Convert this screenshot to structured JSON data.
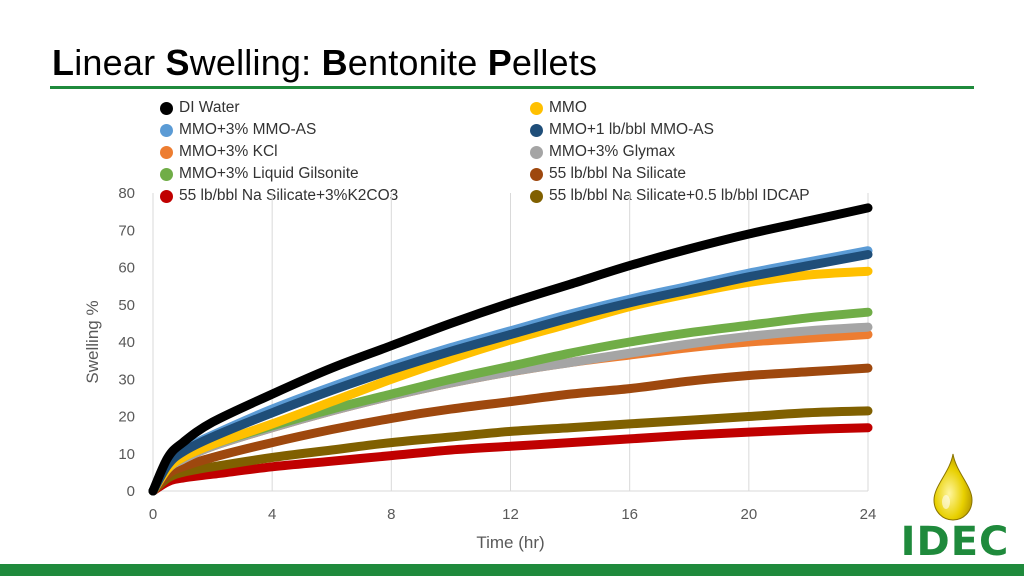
{
  "title": {
    "parts": [
      {
        "text": "L",
        "bold": true
      },
      {
        "text": "inear ",
        "bold": false
      },
      {
        "text": "S",
        "bold": true
      },
      {
        "text": "welling: ",
        "bold": false
      },
      {
        "text": "B",
        "bold": true
      },
      {
        "text": "entonite ",
        "bold": false
      },
      {
        "text": "P",
        "bold": true
      },
      {
        "text": "ellets",
        "bold": false
      }
    ]
  },
  "colors": {
    "accent_green": "#1f8a3c"
  },
  "logo": {
    "text": "IDEC",
    "icon": "oil-drop-icon"
  },
  "chart_data": {
    "type": "line",
    "title": "",
    "xlabel": "Time (hr)",
    "ylabel": "Swelling %",
    "xlim": [
      0,
      24
    ],
    "ylim": [
      0,
      80
    ],
    "xticks": [
      0,
      4,
      8,
      12,
      16,
      20,
      24
    ],
    "yticks": [
      0,
      10,
      20,
      30,
      40,
      50,
      60,
      70,
      80
    ],
    "grid": {
      "vertical": true,
      "horizontal": false
    },
    "legend_position": "top",
    "x": [
      0,
      0.5,
      1,
      2,
      4,
      6,
      8,
      10,
      12,
      14,
      16,
      18,
      20,
      22,
      24
    ],
    "series": [
      {
        "name": "DI Water",
        "color": "#000000",
        "values": [
          0,
          9,
          13,
          18.5,
          26,
          33,
          39,
          45,
          50.5,
          55.5,
          60.5,
          65,
          69,
          72.5,
          76
        ]
      },
      {
        "name": "MMO",
        "color": "#ffc000",
        "values": [
          0,
          6,
          9,
          12.5,
          18,
          24,
          30,
          35.5,
          40.5,
          45,
          49.5,
          53,
          56,
          58,
          59
        ]
      },
      {
        "name": "MMO+3% MMO-AS",
        "color": "#5b9bd5",
        "values": [
          0,
          7.5,
          11,
          15,
          22,
          28,
          33.5,
          38.5,
          43,
          47.5,
          51.5,
          55,
          58.5,
          61.5,
          64.5
        ]
      },
      {
        "name": "MMO+1 lb/bbl MMO-AS",
        "color": "#1f4e79",
        "values": [
          0,
          7,
          10.5,
          14.5,
          21,
          27,
          32.5,
          37.5,
          42,
          46.5,
          50.5,
          54,
          57.5,
          60.5,
          63.5
        ]
      },
      {
        "name": "MMO+3% KCl",
        "color": "#ed7d31",
        "values": [
          0,
          6,
          8.5,
          12,
          17,
          21.5,
          25.5,
          29,
          32,
          34.5,
          36.5,
          38.5,
          40,
          41,
          42
        ]
      },
      {
        "name": "MMO+3% Glymax",
        "color": "#a5a5a5",
        "values": [
          0,
          6,
          8.5,
          12,
          17,
          21.5,
          25.5,
          29,
          32,
          34.5,
          37,
          39.5,
          41.5,
          43,
          44
        ]
      },
      {
        "name": "MMO+3% Liquid Gilsonite",
        "color": "#70ad47",
        "values": [
          0,
          6,
          9,
          12.5,
          17.5,
          22,
          26,
          30,
          33.5,
          37,
          40,
          42.5,
          44.5,
          46.5,
          48
        ]
      },
      {
        "name": "55 lb/bbl Na Silicate",
        "color": "#9e480e",
        "values": [
          0,
          4.5,
          6.5,
          9,
          13,
          16.5,
          19.5,
          22,
          24,
          26,
          27.5,
          29.5,
          31,
          32,
          33
        ]
      },
      {
        "name": "55 lb/bbl Na Silicate+3%K2CO3",
        "color": "#c00000",
        "values": [
          0,
          2.5,
          3.5,
          4.5,
          6.5,
          8,
          9.5,
          11,
          12,
          13,
          14,
          15,
          15.8,
          16.5,
          17
        ]
      },
      {
        "name": "55 lb/bbl Na Silicate+0.5 lb/bbl IDCAP",
        "color": "#806000",
        "values": [
          0,
          3.5,
          5,
          6.5,
          9,
          11,
          13,
          14.5,
          16,
          17,
          18,
          19,
          20,
          21,
          21.5
        ]
      }
    ],
    "legend_order": [
      0,
      1,
      2,
      3,
      4,
      5,
      6,
      7,
      8,
      9
    ]
  }
}
